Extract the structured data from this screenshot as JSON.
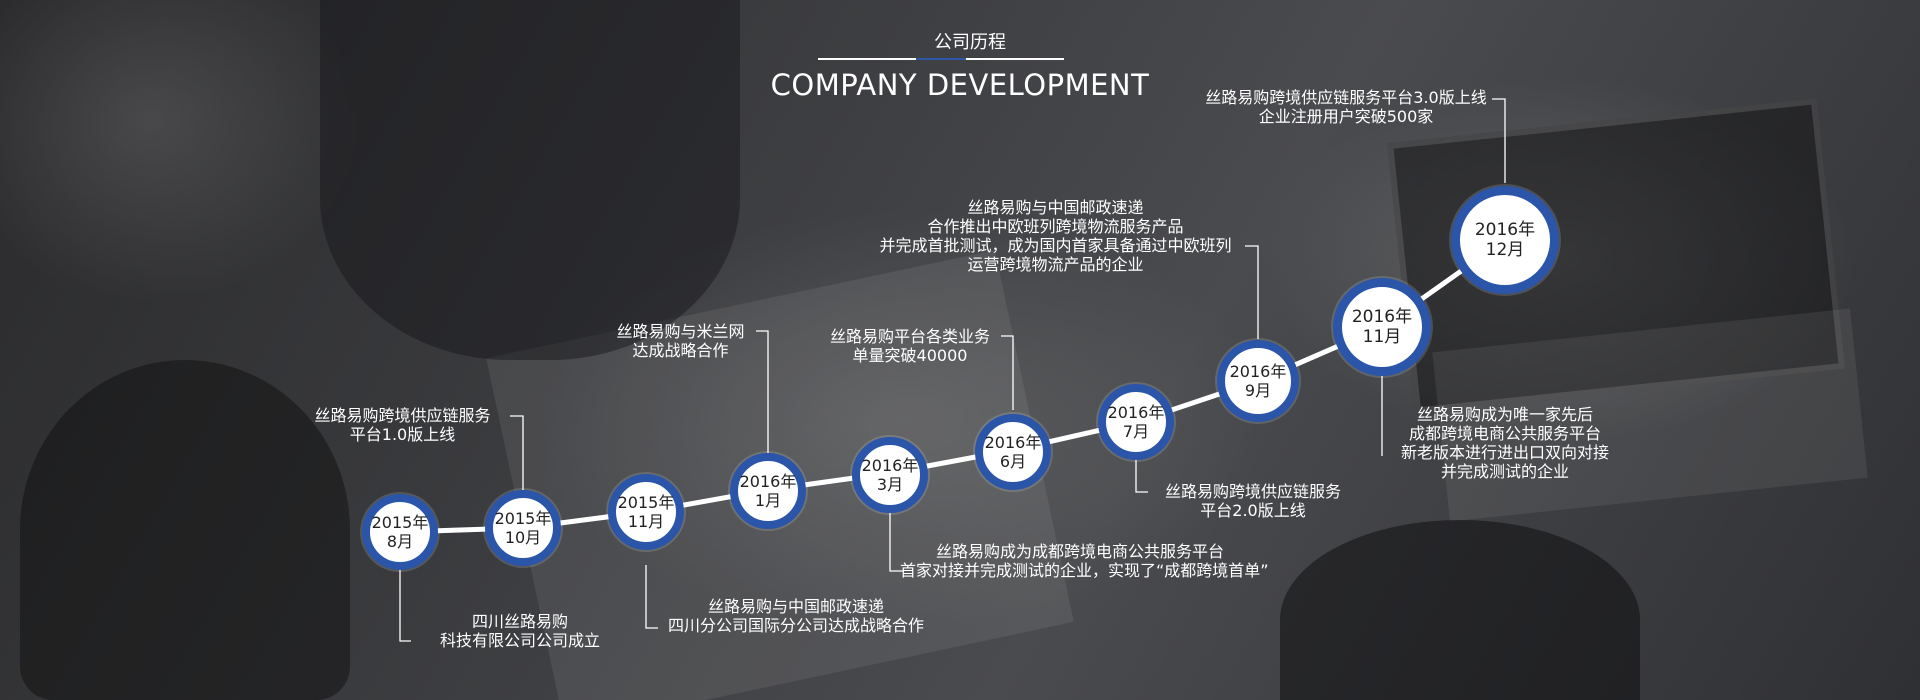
{
  "header": {
    "title_cn": "公司历程",
    "title_en": "COMPANY DEVELOPMENT"
  },
  "colors": {
    "accent": "#2a55a8",
    "line": "#ffffff",
    "text": "#ffffff"
  },
  "milestones": [
    {
      "year": "2015年",
      "month": "8月"
    },
    {
      "year": "2015年",
      "month": "10月"
    },
    {
      "year": "2015年",
      "month": "11月"
    },
    {
      "year": "2016年",
      "month": "1月"
    },
    {
      "year": "2016年",
      "month": "3月"
    },
    {
      "year": "2016年",
      "month": "6月"
    },
    {
      "year": "2016年",
      "month": "7月"
    },
    {
      "year": "2016年",
      "month": "9月"
    },
    {
      "year": "2016年",
      "month": "11月"
    },
    {
      "year": "2016年",
      "month": "12月"
    }
  ],
  "events": [
    {
      "lines": [
        "四川丝路易购",
        "科技有限公司公司成立"
      ]
    },
    {
      "lines": [
        "丝路易购跨境供应链服务",
        "平台1.0版上线"
      ]
    },
    {
      "lines": [
        "丝路易购与中国邮政速递",
        "四川分公司国际分公司达成战略合作"
      ]
    },
    {
      "lines": [
        "丝路易购与米兰网",
        "达成战略合作"
      ]
    },
    {
      "lines": [
        "丝路易购成为成都跨境电商公共服务平台",
        "首家对接并完成测试的企业，实现了“成都跨境首单”"
      ]
    },
    {
      "lines": [
        "丝路易购平台各类业务",
        "单量突破40000"
      ]
    },
    {
      "lines": [
        "丝路易购跨境供应链服务",
        "平台2.0版上线"
      ]
    },
    {
      "lines": [
        "丝路易购与中国邮政速递",
        "合作推出中欧班列跨境物流服务产品",
        "并完成首批测试，成为国内首家具备通过中欧班列",
        "运营跨境物流产品的企业"
      ]
    },
    {
      "lines": [
        "丝路易购成为唯一家先后",
        "成都跨境电商公共服务平台",
        "新老版本进行进出口双向对接",
        "并完成测试的企业"
      ]
    },
    {
      "lines": [
        "丝路易购跨境供应链服务平台3.0版上线",
        "企业注册用户突破500家"
      ]
    }
  ]
}
